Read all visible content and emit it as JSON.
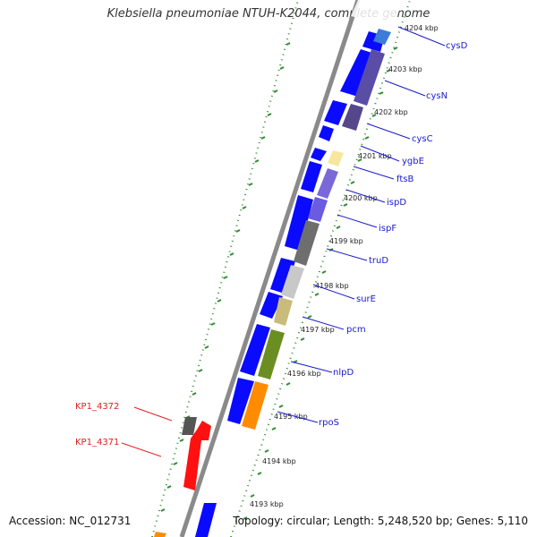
{
  "title": "Klebsiella pneumoniae NTUH-K2044, complete genome",
  "footer": {
    "accession": "Accession: NC_012731",
    "summary": "Topology: circular; Length: 5,248,520 bp; Genes: 5,110"
  },
  "ticks": [
    {
      "label": "4204 kbp"
    },
    {
      "label": "4203 kbp"
    },
    {
      "label": "4202 kbp"
    },
    {
      "label": "4201 kbp"
    },
    {
      "label": "4200 kbp"
    },
    {
      "label": "4199 kbp"
    },
    {
      "label": "4198 kbp"
    },
    {
      "label": "4197 kbp"
    },
    {
      "label": "4196 kbp"
    },
    {
      "label": "4195 kbp"
    },
    {
      "label": "4194 kbp"
    },
    {
      "label": "4193 kbp"
    }
  ],
  "gene_labels": [
    {
      "text": "cysD",
      "color": "#1a1acc"
    },
    {
      "text": "cysN",
      "color": "#1a1acc"
    },
    {
      "text": "cysC",
      "color": "#1a1acc"
    },
    {
      "text": "ygbE",
      "color": "#1a1acc"
    },
    {
      "text": "ftsB",
      "color": "#1a1acc"
    },
    {
      "text": "ispD",
      "color": "#1a1acc"
    },
    {
      "text": "ispF",
      "color": "#1a1acc"
    },
    {
      "text": "truD",
      "color": "#1a1acc"
    },
    {
      "text": "surE",
      "color": "#1a1acc"
    },
    {
      "text": "pcm",
      "color": "#1a1acc"
    },
    {
      "text": "nlpD",
      "color": "#1a1acc"
    },
    {
      "text": "rpoS",
      "color": "#1a1acc"
    },
    {
      "text": "KP1_4372",
      "color": "#e02020"
    },
    {
      "text": "KP1_4371",
      "color": "#e02020"
    }
  ],
  "colors": {
    "cds": "#0a0aff",
    "backbone": "#8a8a8a",
    "dotted_circle": "#2e8b2e",
    "highlight_red": "#ff1111",
    "highlight_orange": "#ff8c00",
    "label_blue": "#1a1acc",
    "label_red": "#e02020"
  }
}
